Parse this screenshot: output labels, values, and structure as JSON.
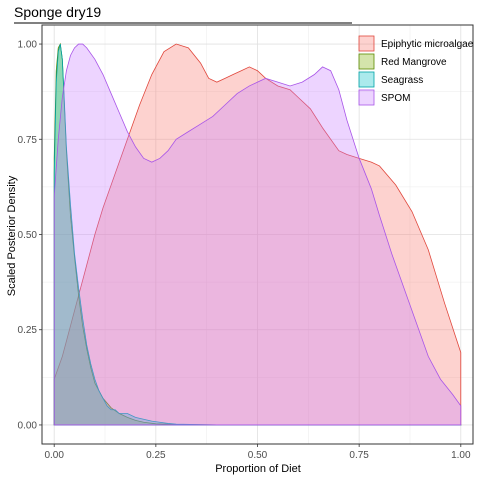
{
  "chart_data": {
    "type": "area",
    "title": "Sponge dry19",
    "xlabel": "Proportion of Diet",
    "ylabel": "Scaled Posterior Density",
    "xlim": [
      0,
      1
    ],
    "ylim": [
      0,
      1
    ],
    "x_ticks": [
      "0.00",
      "0.25",
      "0.50",
      "0.75",
      "1.00"
    ],
    "y_ticks": [
      "0.00",
      "0.25",
      "0.50",
      "0.75",
      "1.00"
    ],
    "grid": true,
    "legend_position": "top-right",
    "series": [
      {
        "name": "Epiphytic microalgae",
        "fill": "#F8766D",
        "line": "#E0473C",
        "x": [
          0.0,
          0.02,
          0.04,
          0.06,
          0.08,
          0.1,
          0.12,
          0.15,
          0.18,
          0.21,
          0.24,
          0.27,
          0.3,
          0.33,
          0.36,
          0.38,
          0.4,
          0.42,
          0.44,
          0.46,
          0.48,
          0.5,
          0.52,
          0.55,
          0.58,
          0.6,
          0.63,
          0.66,
          0.7,
          0.72,
          0.75,
          0.78,
          0.8,
          0.84,
          0.88,
          0.92,
          0.96,
          1.0
        ],
        "y": [
          0.12,
          0.18,
          0.26,
          0.34,
          0.42,
          0.5,
          0.57,
          0.66,
          0.75,
          0.84,
          0.92,
          0.98,
          1.0,
          0.99,
          0.95,
          0.91,
          0.9,
          0.91,
          0.92,
          0.93,
          0.94,
          0.93,
          0.91,
          0.89,
          0.88,
          0.86,
          0.83,
          0.78,
          0.72,
          0.71,
          0.7,
          0.69,
          0.68,
          0.63,
          0.56,
          0.46,
          0.32,
          0.19
        ]
      },
      {
        "name": "Red Mangrove",
        "fill": "#7CAE00",
        "line": "#5A8A00",
        "x": [
          0.0,
          0.005,
          0.01,
          0.015,
          0.02,
          0.025,
          0.03,
          0.04,
          0.05,
          0.06,
          0.07,
          0.08,
          0.09,
          0.1,
          0.12,
          0.14,
          0.16,
          0.18,
          0.2,
          0.22,
          0.25,
          0.3,
          0.4,
          1.0
        ],
        "y": [
          0.7,
          0.93,
          0.99,
          1.0,
          0.96,
          0.84,
          0.72,
          0.55,
          0.44,
          0.34,
          0.26,
          0.2,
          0.15,
          0.11,
          0.07,
          0.045,
          0.03,
          0.02,
          0.012,
          0.007,
          0.003,
          0.001,
          0.0,
          0.0
        ]
      },
      {
        "name": "Seagrass",
        "fill": "#00BFC4",
        "line": "#00A3A8",
        "x": [
          0.0,
          0.005,
          0.01,
          0.015,
          0.02,
          0.025,
          0.03,
          0.04,
          0.05,
          0.06,
          0.07,
          0.08,
          0.09,
          0.1,
          0.11,
          0.12,
          0.13,
          0.14,
          0.15,
          0.16,
          0.18,
          0.2,
          0.22,
          0.24,
          0.26,
          0.28,
          0.3,
          0.35,
          0.4,
          1.0
        ],
        "y": [
          0.66,
          0.9,
          0.98,
          1.0,
          0.96,
          0.85,
          0.73,
          0.58,
          0.45,
          0.36,
          0.28,
          0.21,
          0.16,
          0.12,
          0.09,
          0.07,
          0.05,
          0.04,
          0.04,
          0.03,
          0.03,
          0.02,
          0.015,
          0.01,
          0.007,
          0.004,
          0.002,
          0.001,
          0.0,
          0.0
        ]
      },
      {
        "name": "SPOM",
        "fill": "#C77CFF",
        "line": "#A855E8",
        "x": [
          0.0,
          0.01,
          0.02,
          0.03,
          0.04,
          0.05,
          0.06,
          0.07,
          0.08,
          0.1,
          0.12,
          0.14,
          0.16,
          0.18,
          0.2,
          0.22,
          0.24,
          0.26,
          0.28,
          0.3,
          0.33,
          0.36,
          0.39,
          0.42,
          0.45,
          0.48,
          0.5,
          0.52,
          0.55,
          0.58,
          0.61,
          0.64,
          0.66,
          0.68,
          0.7,
          0.72,
          0.75,
          0.78,
          0.8,
          0.83,
          0.86,
          0.89,
          0.92,
          0.95,
          0.98,
          1.0
        ],
        "y": [
          0.6,
          0.75,
          0.86,
          0.93,
          0.97,
          0.99,
          1.0,
          1.0,
          0.99,
          0.96,
          0.92,
          0.87,
          0.82,
          0.77,
          0.73,
          0.7,
          0.69,
          0.7,
          0.72,
          0.75,
          0.77,
          0.79,
          0.81,
          0.84,
          0.87,
          0.89,
          0.9,
          0.91,
          0.9,
          0.89,
          0.9,
          0.92,
          0.94,
          0.93,
          0.88,
          0.8,
          0.7,
          0.62,
          0.55,
          0.45,
          0.36,
          0.27,
          0.18,
          0.12,
          0.08,
          0.05
        ]
      }
    ]
  }
}
